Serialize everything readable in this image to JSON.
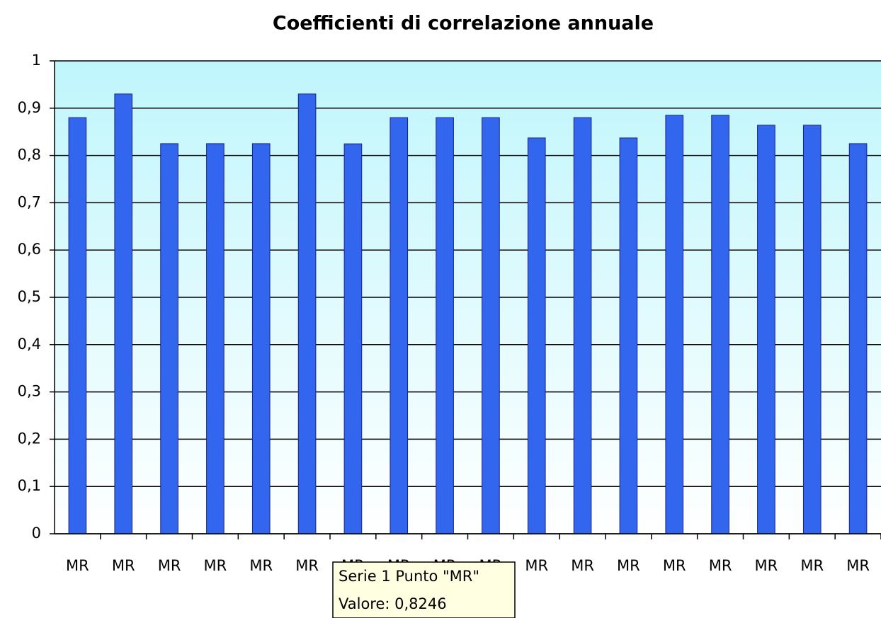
{
  "chart_data": {
    "type": "bar",
    "title": "Coefficienti di correlazione annuale",
    "categories": [
      "MR",
      "MR",
      "MR",
      "MR",
      "MR",
      "MR",
      "MR",
      "MR",
      "MR",
      "MR",
      "MR",
      "MR",
      "MR",
      "MR",
      "MR",
      "MR",
      "MR",
      "MR"
    ],
    "values": [
      0.88,
      0.93,
      0.825,
      0.825,
      0.825,
      0.93,
      0.8246,
      0.88,
      0.88,
      0.88,
      0.837,
      0.88,
      0.837,
      0.885,
      0.885,
      0.864,
      0.864,
      0.825
    ],
    "color": "#3366ee",
    "ylim": [
      0,
      1
    ],
    "yticks": [
      0,
      {
        "value": 0.1,
        "label": "0,1"
      },
      {
        "value": 0.2,
        "label": "0,2"
      },
      {
        "value": 0.3,
        "label": "0,3"
      },
      {
        "value": 0.4,
        "label": "0,4"
      },
      {
        "value": 0.5,
        "label": "0,5"
      },
      {
        "value": 0.6,
        "label": "0,6"
      },
      {
        "value": 0.7,
        "label": "0,7"
      },
      {
        "value": 0.8,
        "label": "0,8"
      },
      {
        "value": 0.9,
        "label": "0,9"
      },
      1
    ],
    "grid": true,
    "tooltip": {
      "lines": [
        "Serie 1 Punto \"MR\"",
        "Valore: 0,8246"
      ]
    }
  }
}
